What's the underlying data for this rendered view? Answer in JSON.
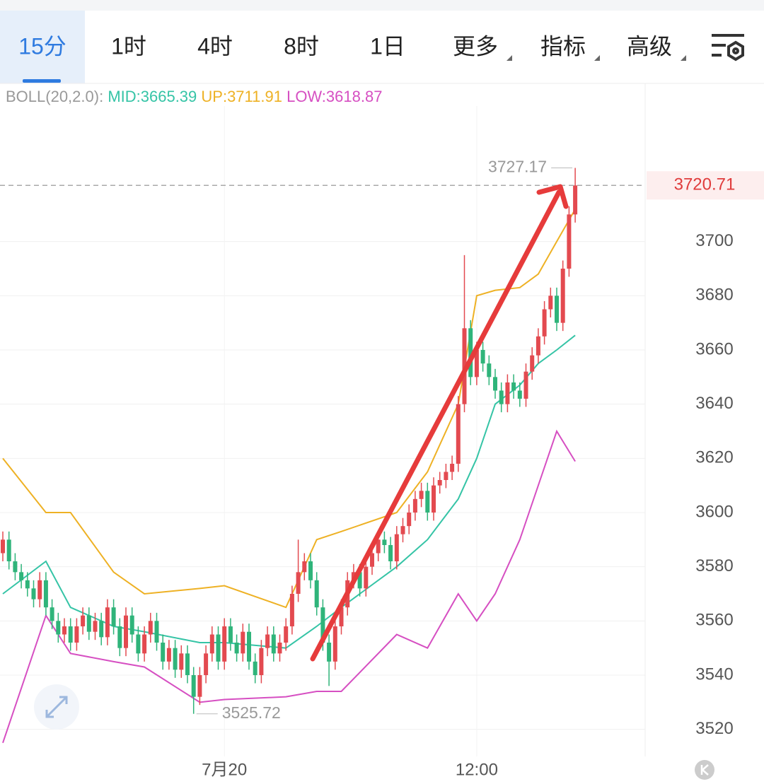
{
  "tabs": [
    "15分",
    "1时",
    "4时",
    "8时",
    "1日",
    "更多",
    "指标",
    "高级"
  ],
  "chart_data": {
    "type": "candlestick",
    "indicator": "BOLL(20,2.0):",
    "categories": [
      null,
      null,
      null,
      null,
      null,
      null,
      null,
      null,
      null,
      null,
      null,
      null,
      null,
      null,
      null,
      null,
      null,
      null,
      null,
      null,
      null,
      null,
      null,
      null,
      null,
      null,
      null,
      null,
      null,
      null,
      null,
      null,
      null,
      null,
      null,
      null,
      "7月20",
      null,
      null,
      null,
      null,
      null,
      null,
      null,
      null,
      null,
      null,
      null,
      null,
      null,
      null,
      null,
      null,
      null,
      null,
      null,
      null,
      null,
      null,
      null,
      null,
      null,
      null,
      null,
      null,
      null,
      null,
      null,
      null,
      null,
      null,
      null,
      null,
      null,
      null,
      null,
      null,
      "12:00",
      null,
      null,
      null,
      null,
      null,
      null,
      null,
      null,
      null,
      null,
      null,
      null,
      null,
      null,
      null,
      null
    ],
    "open": [
      3585,
      3590,
      3582,
      3578,
      3575,
      3572,
      3568,
      3575,
      3565,
      3560,
      3555,
      3558,
      3552,
      3558,
      3562,
      3556,
      3560,
      3554,
      3565,
      3558,
      3550,
      3562,
      3555,
      3548,
      3555,
      3560,
      3552,
      3545,
      3550,
      3542,
      3548,
      3540,
      3532,
      3540,
      3548,
      3555,
      3545,
      3558,
      3552,
      3548,
      3556,
      3545,
      3540,
      3550,
      3555,
      3548,
      3552,
      3558,
      3570,
      3578,
      3582,
      3575,
      3565,
      3552,
      3545,
      3558,
      3565,
      3575,
      3578,
      3572,
      3580,
      3585,
      3590,
      3588,
      3582,
      3592,
      3595,
      3600,
      3605,
      3608,
      3600,
      3610,
      3612,
      3615,
      3618,
      3640,
      3668,
      3650,
      3660,
      3655,
      3650,
      3645,
      3640,
      3648,
      3645,
      3642,
      3652,
      3658,
      3665,
      3675,
      3680,
      3670,
      3690,
      3710
    ],
    "high": [
      3593,
      3593,
      3585,
      3581,
      3578,
      3575,
      3578,
      3578,
      3568,
      3563,
      3561,
      3561,
      3561,
      3565,
      3565,
      3563,
      3563,
      3568,
      3568,
      3561,
      3565,
      3565,
      3558,
      3558,
      3563,
      3563,
      3555,
      3553,
      3553,
      3551,
      3551,
      3543,
      3543,
      3551,
      3558,
      3558,
      3561,
      3561,
      3555,
      3559,
      3559,
      3548,
      3553,
      3558,
      3558,
      3555,
      3561,
      3573,
      3590,
      3585,
      3585,
      3578,
      3568,
      3555,
      3561,
      3568,
      3578,
      3581,
      3581,
      3583,
      3588,
      3593,
      3593,
      3591,
      3595,
      3598,
      3603,
      3608,
      3611,
      3611,
      3613,
      3615,
      3618,
      3621,
      3643,
      3695,
      3671,
      3663,
      3663,
      3658,
      3653,
      3648,
      3651,
      3651,
      3648,
      3655,
      3661,
      3668,
      3678,
      3683,
      3683,
      3693,
      3713,
      3727.17
    ],
    "low": [
      3582,
      3579,
      3575,
      3572,
      3569,
      3565,
      3565,
      3562,
      3557,
      3552,
      3552,
      3549,
      3549,
      3555,
      3553,
      3553,
      3551,
      3551,
      3555,
      3547,
      3547,
      3552,
      3545,
      3545,
      3552,
      3549,
      3542,
      3542,
      3539,
      3539,
      3537,
      3525.72,
      3529,
      3537,
      3545,
      3542,
      3542,
      3549,
      3545,
      3545,
      3542,
      3537,
      3537,
      3547,
      3545,
      3545,
      3549,
      3555,
      3567,
      3575,
      3572,
      3562,
      3549,
      3536,
      3542,
      3555,
      3562,
      3572,
      3569,
      3569,
      3577,
      3582,
      3585,
      3579,
      3579,
      3589,
      3592,
      3597,
      3602,
      3597,
      3597,
      3607,
      3609,
      3612,
      3615,
      3637,
      3647,
      3647,
      3652,
      3647,
      3642,
      3637,
      3637,
      3642,
      3639,
      3639,
      3649,
      3655,
      3662,
      3672,
      3667,
      3667,
      3687,
      3707
    ],
    "close": [
      3590,
      3582,
      3578,
      3575,
      3572,
      3568,
      3575,
      3565,
      3560,
      3555,
      3558,
      3552,
      3558,
      3562,
      3556,
      3560,
      3554,
      3565,
      3558,
      3550,
      3562,
      3555,
      3548,
      3555,
      3560,
      3552,
      3545,
      3550,
      3542,
      3548,
      3540,
      3532,
      3540,
      3548,
      3555,
      3545,
      3558,
      3552,
      3548,
      3556,
      3545,
      3540,
      3550,
      3555,
      3548,
      3552,
      3558,
      3570,
      3578,
      3582,
      3575,
      3565,
      3552,
      3545,
      3558,
      3565,
      3575,
      3578,
      3572,
      3580,
      3585,
      3590,
      3588,
      3582,
      3592,
      3595,
      3600,
      3605,
      3608,
      3600,
      3610,
      3612,
      3615,
      3618,
      3640,
      3668,
      3650,
      3660,
      3655,
      3650,
      3645,
      3640,
      3648,
      3645,
      3642,
      3652,
      3658,
      3665,
      3675,
      3680,
      3670,
      3690,
      3710,
      3720.71
    ],
    "up_color": "#e34a50",
    "down_color": "#2fb47a",
    "bands": {
      "x": [
        0,
        7,
        11,
        18,
        23,
        32,
        36,
        46,
        51,
        55,
        64,
        69,
        74,
        77,
        80,
        84,
        87,
        90,
        93
      ],
      "series": [
        {
          "name": "MID",
          "legend": "MID:3665.39",
          "color": "#35c4a6",
          "values": [
            3570,
            3582,
            3565,
            3558,
            3556,
            3552,
            3552,
            3550,
            3558,
            3565,
            3580,
            3590,
            3605,
            3620,
            3640,
            3647,
            3655,
            3660,
            3665.39
          ]
        },
        {
          "name": "UP",
          "legend": "UP:3711.91",
          "color": "#eeb124",
          "values": [
            3620,
            3600,
            3600,
            3578,
            3570,
            3572,
            3573,
            3565,
            3590,
            3593,
            3600,
            3615,
            3640,
            3680,
            3682,
            3683,
            3688,
            3700,
            3711.91
          ]
        },
        {
          "name": "LOW",
          "legend": "LOW:3618.87",
          "color": "#d64fc2",
          "values": [
            3515,
            3562,
            3548,
            3545,
            3543,
            3530,
            3531,
            3532,
            3534,
            3534,
            3555,
            3550,
            3570,
            3560,
            3570,
            3590,
            3610,
            3630,
            3618.87
          ]
        }
      ]
    },
    "ylim": [
      3510,
      3750
    ],
    "yticks": [
      3520,
      3540,
      3560,
      3580,
      3600,
      3620,
      3640,
      3660,
      3680,
      3700
    ],
    "grid": true
  }
}
